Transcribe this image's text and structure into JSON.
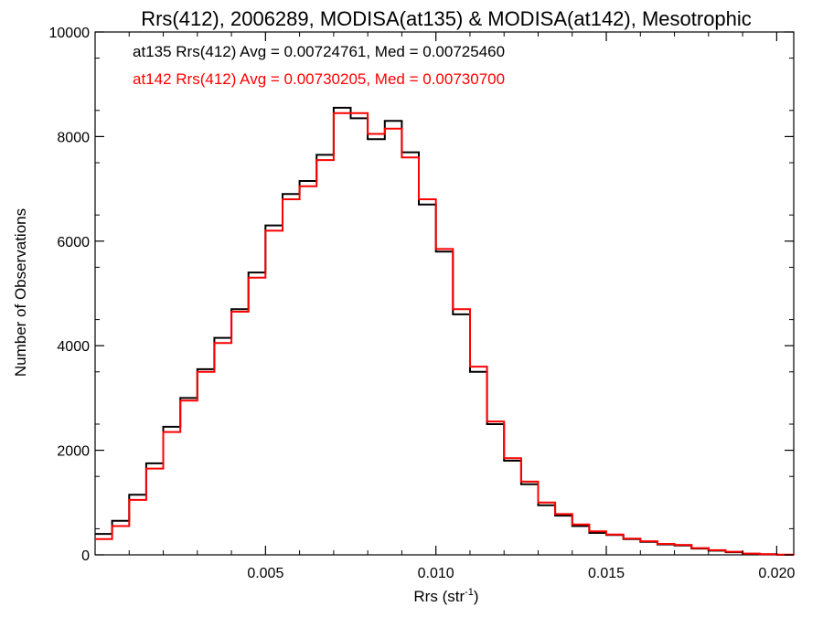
{
  "chart_data": {
    "type": "line",
    "title": "Rrs(412), 2006289, MODISA(at135) & MODISA(at142), Mesotrophic",
    "xlabel": "Rrs (str",
    "xlabel_sup": "-1",
    "xlabel_close": ")",
    "ylabel": "Number of Observations",
    "xlim": [
      0.0,
      0.0205
    ],
    "ylim": [
      0,
      10000
    ],
    "xticks": [
      0.005,
      0.01,
      0.015,
      0.02
    ],
    "xtick_labels": [
      "0.005",
      "0.010",
      "0.015",
      "0.020"
    ],
    "yticks": [
      0,
      2000,
      4000,
      6000,
      8000,
      10000
    ],
    "ytick_labels": [
      "0",
      "2000",
      "4000",
      "6000",
      "8000",
      "10000"
    ],
    "grid": false,
    "legend_placement": "top-left",
    "annotations": [
      {
        "text": "at135 Rrs(412) Avg = 0.00724761, Med = 0.00725460",
        "color": "#000000"
      },
      {
        "text": "at142 Rrs(412) Avg = 0.00730205, Med = 0.00730700",
        "color": "#ff0000"
      }
    ],
    "series": [
      {
        "color": "#000000",
        "x": [
          0.0,
          0.0005,
          0.001,
          0.0015,
          0.002,
          0.0025,
          0.003,
          0.0035,
          0.004,
          0.0045,
          0.005,
          0.0055,
          0.006,
          0.0065,
          0.007,
          0.0075,
          0.008,
          0.0085,
          0.009,
          0.0095,
          0.01,
          0.0105,
          0.011,
          0.0115,
          0.012,
          0.0125,
          0.013,
          0.0135,
          0.014,
          0.0145,
          0.015,
          0.0155,
          0.016,
          0.0165,
          0.017,
          0.0175,
          0.018,
          0.0185,
          0.019,
          0.0195,
          0.02,
          0.0205
        ],
        "values": [
          400,
          650,
          1150,
          1750,
          2450,
          3000,
          3550,
          4150,
          4700,
          5400,
          6300,
          6900,
          7150,
          7650,
          8550,
          8350,
          7950,
          8300,
          7700,
          6700,
          5800,
          4600,
          3500,
          2500,
          1800,
          1350,
          950,
          750,
          550,
          420,
          380,
          300,
          250,
          200,
          180,
          120,
          80,
          50,
          20,
          10,
          0,
          0
        ]
      },
      {
        "color": "#ff0000",
        "x": [
          0.0,
          0.0005,
          0.001,
          0.0015,
          0.002,
          0.0025,
          0.003,
          0.0035,
          0.004,
          0.0045,
          0.005,
          0.0055,
          0.006,
          0.0065,
          0.007,
          0.0075,
          0.008,
          0.0085,
          0.009,
          0.0095,
          0.01,
          0.0105,
          0.011,
          0.0115,
          0.012,
          0.0125,
          0.013,
          0.0135,
          0.014,
          0.0145,
          0.015,
          0.0155,
          0.016,
          0.0165,
          0.017,
          0.0175,
          0.018,
          0.0185,
          0.019,
          0.0195,
          0.02,
          0.0205
        ],
        "values": [
          300,
          550,
          1050,
          1650,
          2350,
          2950,
          3500,
          4050,
          4650,
          5300,
          6200,
          6800,
          7050,
          7550,
          8450,
          8450,
          8050,
          8150,
          7600,
          6800,
          5850,
          4700,
          3600,
          2550,
          1850,
          1400,
          1000,
          780,
          580,
          450,
          390,
          310,
          260,
          210,
          190,
          130,
          90,
          60,
          25,
          12,
          5,
          0
        ]
      }
    ]
  }
}
